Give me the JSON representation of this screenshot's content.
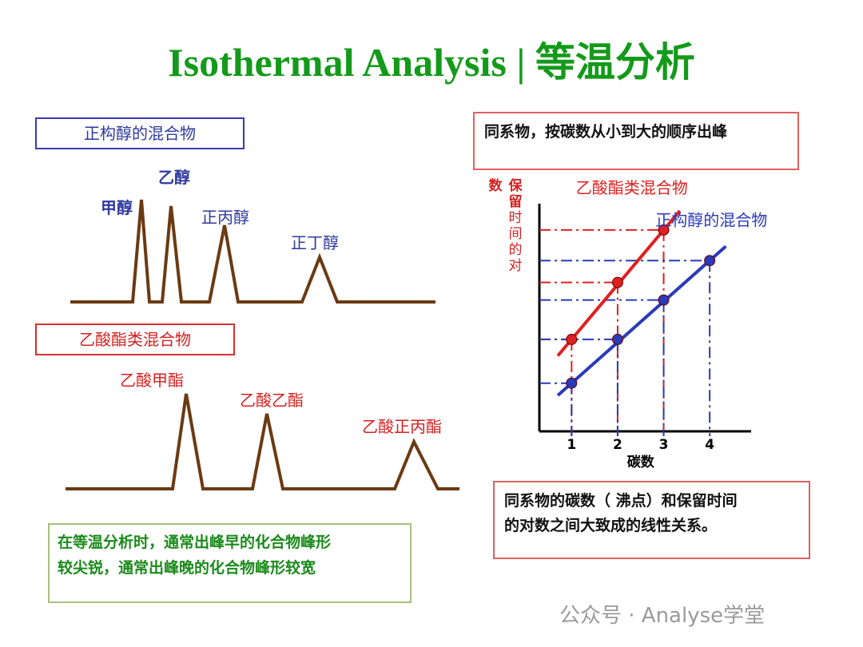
{
  "title": "Isothermal Analysis | 等温分析",
  "alcohol_box": "正构醇的混合物",
  "alcohol_peaks": [
    "甲醇",
    "乙醇",
    "正丙醇",
    "正丁醇"
  ],
  "ester_box": "乙酸酯类混合物",
  "ester_peaks": [
    "乙酸甲酯",
    "乙酸乙酯",
    "乙酸正丙酯"
  ],
  "isothermal_note": [
    "在等温分析时，通常出峰早的化合物峰形",
    "较尖锐，通常出峰晚的化合物峰形较宽"
  ],
  "homolog_note": "同系物，按碳数从小到大的顺序出峰",
  "linear_note": [
    "同系物的碳数（ 沸点）和保留时间",
    "的对数之间大致成的线性关系。"
  ],
  "watermark": "公众号 · Analyse学堂",
  "chart_data": {
    "type": "line",
    "title": "",
    "xlabel": "碳数",
    "ylabel_chars": [
      "数",
      "保",
      "留",
      "时",
      "间",
      "的",
      "对"
    ],
    "x": [
      1,
      2,
      3,
      4
    ],
    "x_ticks": [
      "1",
      "2",
      "3",
      "4"
    ],
    "series": [
      {
        "name": "乙酸酯类混合物",
        "color": "#e02020",
        "x": [
          1,
          2,
          3
        ],
        "y": [
          2.1,
          3.4,
          4.6
        ]
      },
      {
        "name": "正构醇的混合物",
        "color": "#2a3ab8",
        "x": [
          1,
          2,
          3,
          4
        ],
        "y": [
          1.1,
          2.1,
          3.0,
          3.9
        ]
      }
    ],
    "xlim": [
      0.3,
      4.9
    ],
    "ylim": [
      0,
      5.2
    ]
  }
}
